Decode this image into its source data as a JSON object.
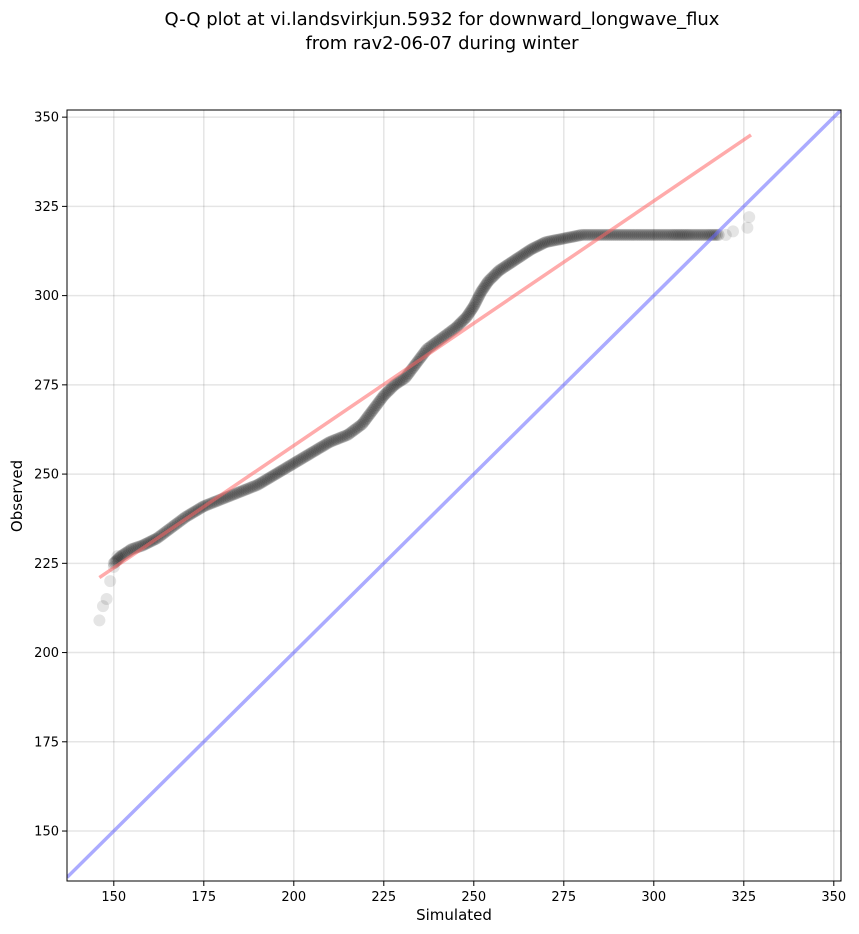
{
  "chart_data": {
    "type": "scatter",
    "title": "Q-Q plot at vi.landsvirkjun.5932 for downward_longwave_flux",
    "subtitle": "from rav2-06-07 during winter",
    "xlabel": "Simulated",
    "ylabel": "Observed",
    "xlim": [
      137,
      352
    ],
    "ylim": [
      136,
      352
    ],
    "xticks": [
      150,
      175,
      200,
      225,
      250,
      275,
      300,
      325,
      350
    ],
    "yticks": [
      150,
      175,
      200,
      225,
      250,
      275,
      300,
      325,
      350
    ],
    "grid": true,
    "colors": {
      "points": "#000000",
      "fit_line": "#ff6666",
      "identity_line": "#6666ff"
    },
    "quantile_path": [
      [
        150,
        225
      ],
      [
        152,
        227
      ],
      [
        155,
        229
      ],
      [
        158,
        230
      ],
      [
        162,
        232
      ],
      [
        166,
        235
      ],
      [
        170,
        238
      ],
      [
        175,
        241
      ],
      [
        180,
        243
      ],
      [
        185,
        245
      ],
      [
        190,
        247
      ],
      [
        195,
        250
      ],
      [
        200,
        253
      ],
      [
        205,
        256
      ],
      [
        210,
        259
      ],
      [
        215,
        261
      ],
      [
        219,
        264
      ],
      [
        222,
        268
      ],
      [
        225,
        272
      ],
      [
        228,
        275
      ],
      [
        231,
        277
      ],
      [
        234,
        281
      ],
      [
        237,
        285
      ],
      [
        241,
        288
      ],
      [
        245,
        291
      ],
      [
        248,
        294
      ],
      [
        250,
        297
      ],
      [
        252,
        301
      ],
      [
        254,
        304
      ],
      [
        257,
        307
      ],
      [
        260,
        309
      ],
      [
        263,
        311
      ],
      [
        266,
        313
      ],
      [
        270,
        315
      ],
      [
        275,
        316
      ],
      [
        280,
        317
      ],
      [
        290,
        317
      ],
      [
        300,
        317
      ],
      [
        305,
        317
      ],
      [
        310,
        317
      ],
      [
        315,
        317
      ],
      [
        318,
        317
      ]
    ],
    "tail_points": [
      [
        146,
        209
      ],
      [
        147,
        213
      ],
      [
        148,
        215
      ],
      [
        149,
        220
      ],
      [
        150,
        224
      ],
      [
        151,
        227
      ],
      [
        320,
        317
      ],
      [
        322,
        318
      ],
      [
        326,
        319
      ],
      [
        326.5,
        322
      ]
    ],
    "fit_line": {
      "x": [
        146,
        327
      ],
      "y": [
        221,
        345
      ]
    },
    "identity_line": {
      "x": [
        137,
        352
      ],
      "y": [
        137,
        352
      ]
    }
  }
}
